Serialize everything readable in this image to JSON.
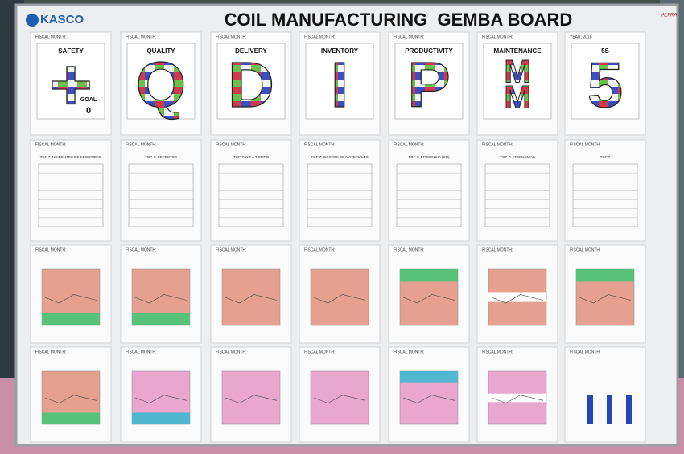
{
  "header": {
    "logo": "KASCO",
    "title": "COIL MANUFACTURING  GEMBA BOARD",
    "corner": "ALFRA"
  },
  "fiscal_label": "FISCAL MONTH:",
  "columns": [
    {
      "category": "SAFETY",
      "letter": "+",
      "top7": "TOP 7 INCIDENTES DE SEGURIDAD",
      "goal": "GOAL",
      "goal_value": "0"
    },
    {
      "category": "QUALITY",
      "letter": "Q",
      "top7": "TOP 7: DEFECTOS"
    },
    {
      "category": "DELIVERY",
      "letter": "D",
      "top7": "TOP 7: NO A TIEMPO"
    },
    {
      "category": "INVENTORY",
      "letter": "I",
      "top7": "TOP 7: COSTOS DE MATERIALES"
    },
    {
      "category": "PRODUCTIVITY",
      "letter": "P",
      "top7": "TOP 7: EFICIENCIA (OR)"
    },
    {
      "category": "MAINTENANCE",
      "letter": "M",
      "top7": "TOP 7: PROBLEMAS"
    },
    {
      "category": "5S",
      "letter": "5",
      "top7": "TOP 7",
      "year": "YEAR: 2018"
    }
  ]
}
